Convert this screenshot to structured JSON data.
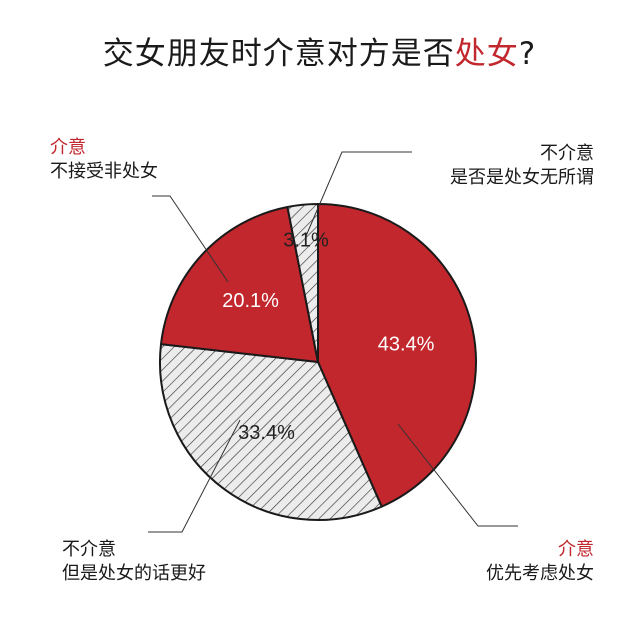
{
  "title": {
    "prefix": "交女朋友时介意对方是否",
    "highlight": "处女",
    "suffix": "?"
  },
  "colors": {
    "accent": "#c1272d",
    "hatch_fill": "#ececec",
    "outline": "#1a1a1a"
  },
  "chart_data": {
    "type": "pie",
    "title": "交女朋友时介意对方是否处女?",
    "slices": [
      {
        "value": 43.4,
        "value_label": "43.4%",
        "style": "solid",
        "color": "#c1272d",
        "label_top": "介意",
        "label_bottom": "优先考虑处女"
      },
      {
        "value": 33.4,
        "value_label": "33.4%",
        "style": "hatched",
        "color": "#ececec",
        "label_top": "不介意",
        "label_bottom": "但是处女的话更好"
      },
      {
        "value": 20.1,
        "value_label": "20.1%",
        "style": "solid",
        "color": "#c1272d",
        "label_top": "介意",
        "label_bottom": "不接受非处女"
      },
      {
        "value": 3.1,
        "value_label": "3.1%",
        "style": "hatched",
        "color": "#ececec",
        "label_top": "不介意",
        "label_bottom": "是否是处女无所谓"
      }
    ]
  }
}
